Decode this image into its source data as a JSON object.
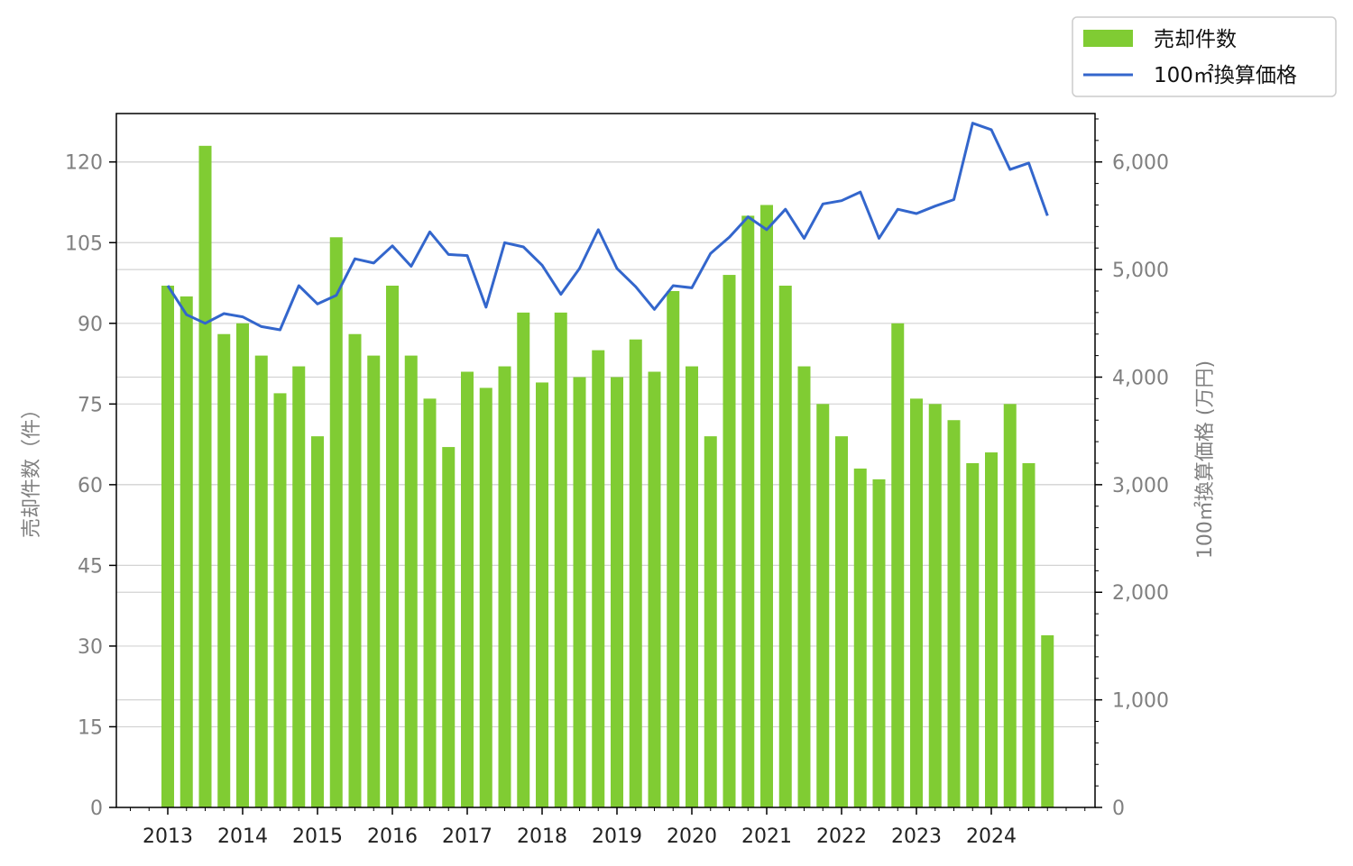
{
  "chart_data": {
    "type": "bar",
    "legend_placement": "top-right",
    "grid": true,
    "legend": {
      "bar_label": "売却件数",
      "line_label": "100㎡換算価格"
    },
    "y_left": {
      "label": "売却件数（件）",
      "min": 0,
      "max": 129,
      "ticks": [
        0,
        15,
        30,
        45,
        60,
        75,
        90,
        105,
        120
      ]
    },
    "y_right": {
      "label": "100㎡換算価格 (万円)",
      "min": 0,
      "max": 6450,
      "ticks": [
        0,
        1000,
        2000,
        3000,
        4000,
        5000,
        6000
      ],
      "tick_labels": [
        "0",
        "1,000",
        "2,000",
        "3,000",
        "4,000",
        "5,000",
        "6,000"
      ]
    },
    "x_axis": {
      "ticks": [
        "2013",
        "2014",
        "2015",
        "2016",
        "2017",
        "2018",
        "2019",
        "2020",
        "2021",
        "2022",
        "2023",
        "2024"
      ]
    },
    "colors": {
      "bar": "#80cc33",
      "line": "#3366cc",
      "grid": "#d3d3d3",
      "axis": "#000000"
    },
    "series": [
      {
        "name": "売却件数",
        "type": "bar",
        "values": [
          97,
          95,
          123,
          88,
          90,
          84,
          77,
          82,
          69,
          106,
          88,
          84,
          97,
          84,
          76,
          67,
          81,
          78,
          82,
          92,
          79,
          92,
          80,
          85,
          80,
          87,
          81,
          96,
          82,
          69,
          99,
          110,
          112,
          97,
          82,
          75,
          69,
          63,
          61,
          90,
          76,
          75,
          72,
          64,
          66,
          75,
          64,
          32
        ]
      },
      {
        "name": "100㎡換算価格",
        "type": "line",
        "values": [
          4850,
          4580,
          4500,
          4590,
          4560,
          4470,
          4440,
          4850,
          4680,
          4760,
          5100,
          5060,
          5220,
          5030,
          5350,
          5140,
          5130,
          4650,
          5250,
          5210,
          5040,
          4770,
          5010,
          5370,
          5010,
          4840,
          4630,
          4850,
          4830,
          5150,
          5300,
          5490,
          5370,
          5560,
          5290,
          5610,
          5640,
          5720,
          5290,
          5560,
          5520,
          5590,
          5650,
          6360,
          6300,
          5930,
          5990,
          5500
        ]
      }
    ]
  }
}
